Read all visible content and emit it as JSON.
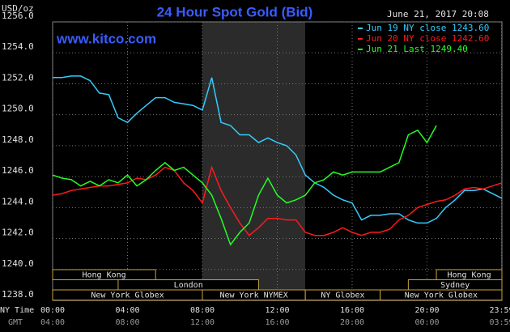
{
  "chart_data": {
    "type": "line",
    "title": "24 Hour Spot Gold (Bid)",
    "subtitle": "www.kitco.com",
    "y_label": "USD/oz",
    "timestamp": "June 21, 2017 20:08",
    "x_label": "NY Time",
    "x2_label": "GMT",
    "x": [
      0,
      0.5,
      1,
      1.5,
      2,
      2.5,
      3,
      3.5,
      4,
      4.5,
      5,
      5.5,
      6,
      6.5,
      7,
      7.5,
      8,
      8.5,
      9,
      9.5,
      10,
      10.5,
      11,
      11.5,
      12,
      12.5,
      13,
      13.5,
      14,
      14.5,
      15,
      15.5,
      16,
      16.5,
      17,
      17.5,
      18,
      18.5,
      19,
      19.5,
      20,
      20.5,
      21,
      21.5,
      22,
      22.5,
      23,
      23.5,
      24
    ],
    "xlim": [
      0,
      24
    ],
    "xticks": [
      {
        "value": 0,
        "label": "00:00"
      },
      {
        "value": 4,
        "label": "04:00"
      },
      {
        "value": 8,
        "label": "08:00"
      },
      {
        "value": 12,
        "label": "12:00"
      },
      {
        "value": 16,
        "label": "16:00"
      },
      {
        "value": 20,
        "label": "20:00"
      },
      {
        "value": 23.98,
        "label": "23:59"
      }
    ],
    "x2ticks": [
      "04:00",
      "08:00",
      "12:00",
      "16:00",
      "20:00",
      "00:00",
      "03:59"
    ],
    "ylim": [
      1238,
      1256
    ],
    "yticks": [
      {
        "value": 1238,
        "label": "1238.0"
      },
      {
        "value": 1240,
        "label": "1240.0"
      },
      {
        "value": 1242,
        "label": "1242.0"
      },
      {
        "value": 1244,
        "label": "1244.0"
      },
      {
        "value": 1246,
        "label": "1246.0"
      },
      {
        "value": 1248,
        "label": "1248.0"
      },
      {
        "value": 1250,
        "label": "1250.0"
      },
      {
        "value": 1252,
        "label": "1252.0"
      },
      {
        "value": 1254,
        "label": "1254.0"
      },
      {
        "value": 1256,
        "label": "1256.0"
      }
    ],
    "grid": true,
    "series": [
      {
        "name": "Jun 19 NY close 1243.60",
        "color": "#33ccff",
        "values": [
          1252.4,
          1252.4,
          1252.5,
          1252.5,
          1252.2,
          1251.4,
          1251.3,
          1249.8,
          1249.5,
          1250.1,
          1250.6,
          1251.1,
          1251.1,
          1250.8,
          1250.7,
          1250.6,
          1250.3,
          1252.4,
          1249.5,
          1249.3,
          1248.7,
          1248.7,
          1248.2,
          1248.5,
          1248.2,
          1248.0,
          1247.4,
          1246.1,
          1245.6,
          1245.3,
          1244.8,
          1244.5,
          1244.3,
          1243.2,
          1243.5,
          1243.5,
          1243.6,
          1243.6,
          1243.2,
          1243.0,
          1243.0,
          1243.3,
          1244.0,
          1244.5,
          1245.1,
          1245.1,
          1245.2,
          1244.9,
          1244.6
        ]
      },
      {
        "name": "Jun 20 NY close 1242.60",
        "color": "#ff1a1a",
        "values": [
          1244.8,
          1244.9,
          1245.1,
          1245.2,
          1245.3,
          1245.4,
          1245.4,
          1245.5,
          1245.6,
          1245.9,
          1245.8,
          1246.1,
          1246.6,
          1246.4,
          1245.6,
          1245.1,
          1244.3,
          1246.6,
          1245.1,
          1244.0,
          1243.0,
          1242.2,
          1242.7,
          1243.3,
          1243.3,
          1243.2,
          1243.2,
          1242.4,
          1242.2,
          1242.2,
          1242.4,
          1242.7,
          1242.4,
          1242.2,
          1242.4,
          1242.4,
          1242.6,
          1243.2,
          1243.5,
          1244.0,
          1244.2,
          1244.4,
          1244.5,
          1244.8,
          1245.2,
          1245.3,
          1245.2,
          1245.4,
          1245.6
        ]
      },
      {
        "name": "Jun 21 Last 1249.40",
        "color": "#22ff22",
        "values": [
          1246.1,
          1245.9,
          1245.8,
          1245.4,
          1245.7,
          1245.4,
          1245.8,
          1245.6,
          1246.1,
          1245.4,
          1245.8,
          1246.4,
          1246.9,
          1246.4,
          1246.6,
          1246.1,
          1245.6,
          1244.8,
          1243.3,
          1241.6,
          1242.4,
          1243.0,
          1244.8,
          1245.9,
          1244.8,
          1244.3,
          1244.5,
          1244.8,
          1245.6,
          1245.8,
          1246.3,
          1246.1,
          1246.3,
          1246.3,
          1246.3,
          1246.3,
          1246.6,
          1246.9,
          1248.7,
          1249.0,
          1248.2,
          1249.3,
          null,
          null,
          null,
          null,
          null,
          null,
          null
        ]
      }
    ],
    "sessions": [
      {
        "label": "Hong Kong",
        "start": 0,
        "end": 5.5
      },
      {
        "label": "Hong Kong",
        "start": 20.5,
        "end": 24
      },
      {
        "label": "London",
        "start": 3.5,
        "end": 11
      },
      {
        "label": "Sydney",
        "start": 19,
        "end": 24
      },
      {
        "label": "New York Globex",
        "start": 0,
        "end": 8
      },
      {
        "label": "New York NYMEX",
        "start": 8,
        "end": 13.5
      },
      {
        "label": "NY Globex",
        "start": 13.5,
        "end": 17.5
      },
      {
        "label": "New York Globex",
        "start": 17.5,
        "end": 24
      }
    ]
  }
}
